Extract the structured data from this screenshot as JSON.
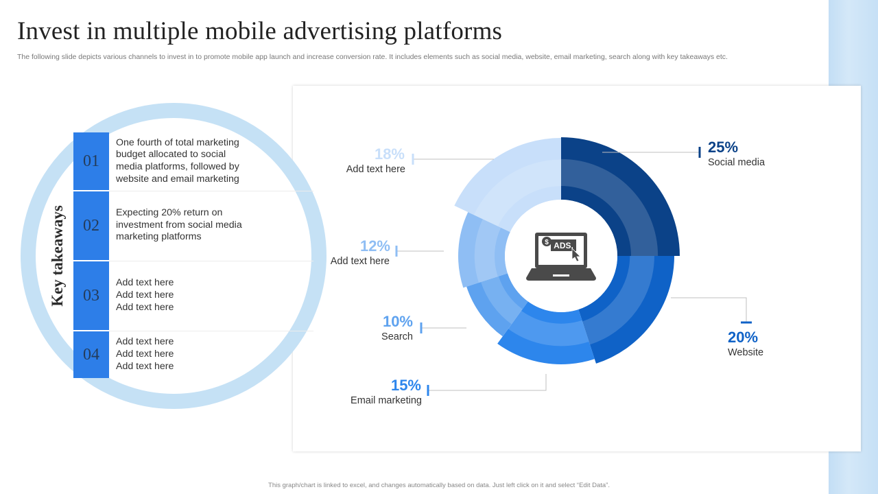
{
  "title": "Invest in multiple mobile advertising platforms",
  "subtitle": "The following slide depicts various channels to invest in to promote mobile app launch and increase conversion rate. It includes elements such as social media, website, email marketing, search along with key takeaways etc.",
  "footnote": "This graph/chart is linked to excel, and changes automatically based on data. Just left click on it and select “Edit Data”.",
  "key_takeaways": {
    "heading": "Key takeaways",
    "items": [
      {
        "number": "01",
        "lines": [
          "One fourth of total marketing",
          "budget allocated to social",
          "media platforms, followed by",
          "website and email marketing"
        ]
      },
      {
        "number": "02",
        "lines": [
          "Expecting 20% return on",
          "investment from social media",
          "marketing platforms"
        ]
      },
      {
        "number": "03",
        "lines": [
          "Add text here",
          "Add text here",
          "Add text here"
        ]
      },
      {
        "number": "04",
        "lines": [
          "Add text here",
          "Add text here",
          "Add text here"
        ]
      }
    ]
  },
  "center_icon": "laptop-ads-icon",
  "center_icon_text": "ADS.",
  "chart_data": {
    "type": "pie",
    "variant": "doughnut",
    "segments": [
      {
        "label": "Social media",
        "value": 25,
        "value_label": "25%",
        "color": "#0b4288"
      },
      {
        "label": "Website",
        "value": 20,
        "value_label": "20%",
        "color": "#0f62c7"
      },
      {
        "label": "Email marketing",
        "value": 15,
        "value_label": "15%",
        "color": "#2d86ec"
      },
      {
        "label": "Search",
        "value": 10,
        "value_label": "10%",
        "color": "#5ea2ef"
      },
      {
        "label": "Add text here",
        "value": 12,
        "value_label": "12%",
        "color": "#8fbef4"
      },
      {
        "label": "Add text here",
        "value": 18,
        "value_label": "18%",
        "color": "#c8dffa"
      }
    ]
  }
}
